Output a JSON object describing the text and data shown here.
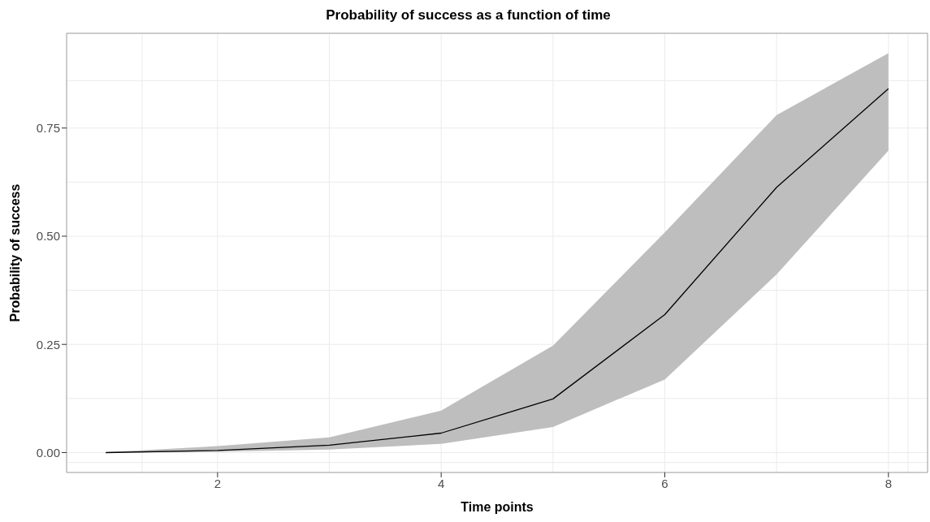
{
  "chart_data": {
    "type": "line",
    "title": "Probability of success as a function of time",
    "xlabel": "Time points",
    "ylabel": "Probability of success",
    "x": [
      1,
      2,
      3,
      4,
      5,
      6,
      7,
      8
    ],
    "series": [
      {
        "color": "#000000",
        "values": [
          0.0,
          0.005,
          0.017,
          0.045,
          0.124,
          0.319,
          0.613,
          0.841
        ],
        "lower": [
          0.0,
          0.002,
          0.007,
          0.02,
          0.059,
          0.169,
          0.412,
          0.698
        ],
        "upper": [
          0.001,
          0.015,
          0.035,
          0.097,
          0.247,
          0.509,
          0.78,
          0.923
        ]
      }
    ],
    "xlim": [
      0.65,
      8.35
    ],
    "xticks": [
      2,
      4,
      6,
      8
    ],
    "ylim": [
      -0.046,
      0.969
    ],
    "yticks": [
      {
        "value": 0,
        "label": "0.00"
      },
      {
        "value": 0.25,
        "label": "0.25"
      },
      {
        "value": 0.5,
        "label": "0.50"
      },
      {
        "value": 0.75,
        "label": "0.75"
      }
    ],
    "grid": true,
    "legend": false,
    "marker": "none",
    "line_style": "solid"
  }
}
